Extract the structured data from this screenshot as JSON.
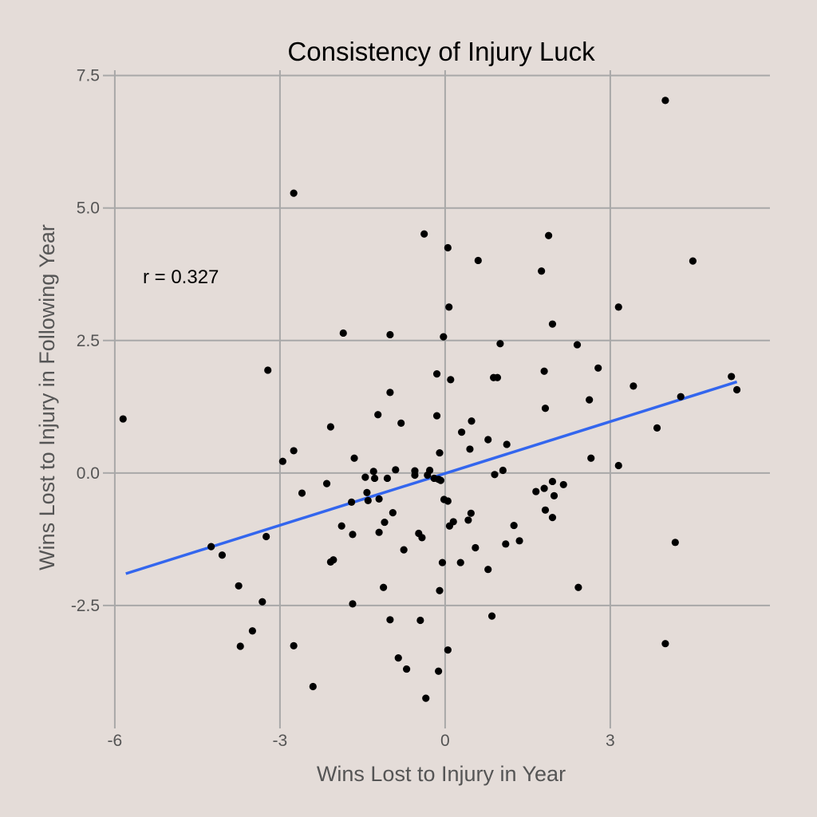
{
  "chart_data": {
    "type": "scatter",
    "title": "Consistency of Injury Luck",
    "xlabel": "Wins Lost to Injury in Year",
    "ylabel": "Wins Lost to Injury in Following Year",
    "xlim": [
      -6.1,
      5.9
    ],
    "ylim": [
      -4.7,
      7.6
    ],
    "x_ticks": [
      -6,
      -3,
      0,
      3
    ],
    "x_tick_labels": [
      "-6",
      "-3",
      "0",
      "3"
    ],
    "y_ticks": [
      -2.5,
      0.0,
      2.5,
      5.0,
      7.5
    ],
    "y_tick_labels": [
      "-2.5",
      "0.0",
      "2.5",
      "5.0",
      "7.5"
    ],
    "grid": true,
    "annotation": {
      "text": "r = 0.327",
      "x": -4.8,
      "y": 3.7
    },
    "fit_line": {
      "color": "#3366ee",
      "x": [
        -5.8,
        5.3
      ],
      "y": [
        -1.9,
        1.72
      ]
    },
    "point_color": "#000000",
    "points": [
      [
        -5.85,
        1.02
      ],
      [
        -4.25,
        -1.39
      ],
      [
        -4.05,
        -1.55
      ],
      [
        -3.75,
        -2.13
      ],
      [
        -3.72,
        -3.27
      ],
      [
        -3.5,
        -2.98
      ],
      [
        -3.32,
        -2.43
      ],
      [
        -3.25,
        -1.2
      ],
      [
        -3.22,
        1.94
      ],
      [
        -2.95,
        0.22
      ],
      [
        -2.75,
        0.42
      ],
      [
        -2.75,
        5.28
      ],
      [
        -2.75,
        -3.26
      ],
      [
        -2.6,
        -0.38
      ],
      [
        -2.4,
        -4.03
      ],
      [
        -2.15,
        -0.2
      ],
      [
        -2.08,
        0.87
      ],
      [
        -2.08,
        -1.68
      ],
      [
        -2.03,
        -1.64
      ],
      [
        -1.88,
        -1.0
      ],
      [
        -1.85,
        2.64
      ],
      [
        -1.7,
        -0.55
      ],
      [
        -1.68,
        -1.16
      ],
      [
        -1.65,
        0.28
      ],
      [
        -1.68,
        -2.47
      ],
      [
        -1.45,
        -0.08
      ],
      [
        -1.42,
        -0.37
      ],
      [
        -1.4,
        -0.52
      ],
      [
        -1.3,
        0.03
      ],
      [
        -1.28,
        -0.1
      ],
      [
        -1.22,
        1.1
      ],
      [
        -1.2,
        -0.49
      ],
      [
        -1.2,
        -1.12
      ],
      [
        -1.12,
        -2.16
      ],
      [
        -1.1,
        -0.93
      ],
      [
        -1.05,
        -0.1
      ],
      [
        -1.0,
        2.61
      ],
      [
        -1.0,
        1.52
      ],
      [
        -1.0,
        -2.77
      ],
      [
        -0.95,
        -0.75
      ],
      [
        -0.9,
        0.06
      ],
      [
        -0.85,
        -3.49
      ],
      [
        -0.8,
        0.94
      ],
      [
        -0.75,
        -1.45
      ],
      [
        -0.7,
        -3.7
      ],
      [
        -0.55,
        0.04
      ],
      [
        -0.55,
        -0.04
      ],
      [
        -0.48,
        -1.14
      ],
      [
        -0.45,
        -2.78
      ],
      [
        -0.42,
        -1.22
      ],
      [
        -0.38,
        4.51
      ],
      [
        -0.35,
        -4.25
      ],
      [
        -0.32,
        -0.04
      ],
      [
        -0.28,
        0.05
      ],
      [
        -0.2,
        -0.1
      ],
      [
        -0.15,
        1.87
      ],
      [
        -0.15,
        1.08
      ],
      [
        -0.12,
        -0.12
      ],
      [
        -0.12,
        -3.74
      ],
      [
        -0.1,
        0.38
      ],
      [
        -0.1,
        -2.22
      ],
      [
        -0.08,
        -0.14
      ],
      [
        -0.05,
        -1.69
      ],
      [
        -0.03,
        2.57
      ],
      [
        -0.02,
        -0.5
      ],
      [
        0.05,
        4.25
      ],
      [
        0.05,
        -0.53
      ],
      [
        0.05,
        -3.34
      ],
      [
        0.07,
        3.13
      ],
      [
        0.08,
        -1.0
      ],
      [
        0.1,
        1.76
      ],
      [
        0.15,
        -0.92
      ],
      [
        0.28,
        -1.69
      ],
      [
        0.3,
        0.77
      ],
      [
        0.42,
        -0.89
      ],
      [
        0.45,
        0.45
      ],
      [
        0.47,
        -0.76
      ],
      [
        0.48,
        0.98
      ],
      [
        0.55,
        -1.41
      ],
      [
        0.6,
        4.01
      ],
      [
        0.78,
        0.63
      ],
      [
        0.78,
        -1.82
      ],
      [
        0.85,
        -2.7
      ],
      [
        0.88,
        1.8
      ],
      [
        0.9,
        -0.03
      ],
      [
        0.95,
        1.8
      ],
      [
        1.0,
        2.44
      ],
      [
        1.05,
        0.05
      ],
      [
        1.1,
        -1.34
      ],
      [
        1.12,
        0.54
      ],
      [
        1.25,
        -0.99
      ],
      [
        1.35,
        -1.28
      ],
      [
        1.65,
        -0.35
      ],
      [
        1.75,
        3.81
      ],
      [
        1.8,
        -0.29
      ],
      [
        1.8,
        1.92
      ],
      [
        1.82,
        1.22
      ],
      [
        1.82,
        -0.7
      ],
      [
        1.88,
        4.48
      ],
      [
        1.95,
        -0.16
      ],
      [
        1.95,
        2.81
      ],
      [
        1.95,
        -0.84
      ],
      [
        1.98,
        -0.43
      ],
      [
        2.15,
        -0.22
      ],
      [
        2.4,
        2.42
      ],
      [
        2.42,
        -2.16
      ],
      [
        2.62,
        1.38
      ],
      [
        2.65,
        0.28
      ],
      [
        2.78,
        1.98
      ],
      [
        3.15,
        3.13
      ],
      [
        3.15,
        0.14
      ],
      [
        3.42,
        1.64
      ],
      [
        3.85,
        0.85
      ],
      [
        4.0,
        7.03
      ],
      [
        4.0,
        -3.22
      ],
      [
        4.18,
        -1.31
      ],
      [
        4.28,
        1.44
      ],
      [
        4.5,
        4.0
      ],
      [
        5.2,
        1.82
      ],
      [
        5.3,
        1.57
      ]
    ]
  }
}
